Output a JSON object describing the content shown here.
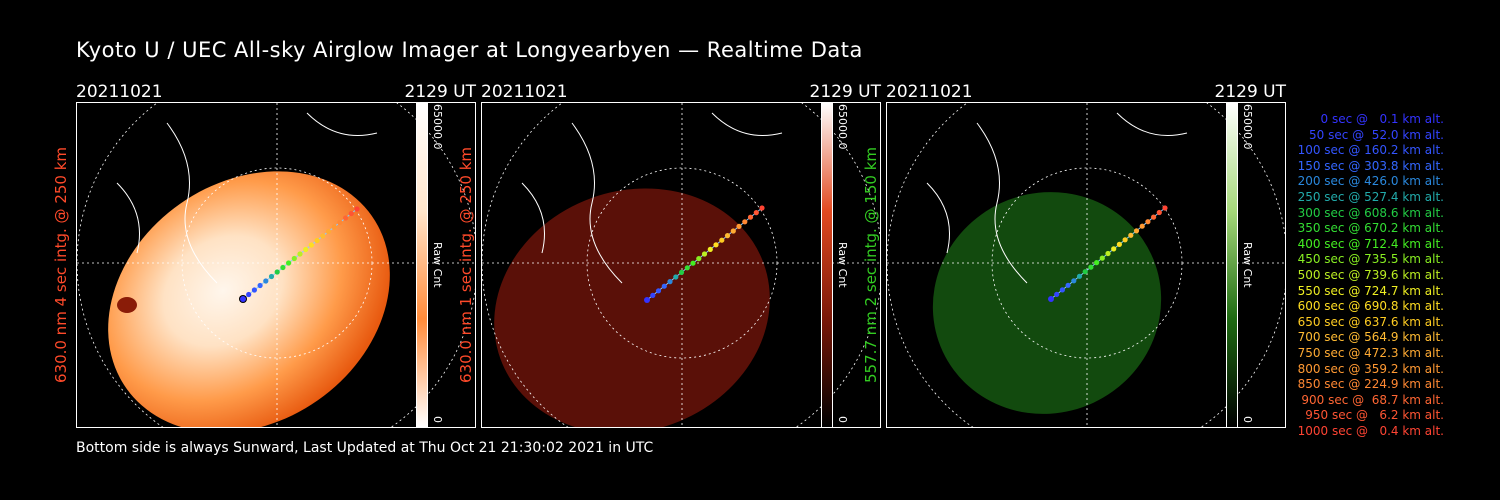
{
  "title": "Kyoto U / UEC All-sky Airglow Imager at Longyearbyen — Realtime Data",
  "panels": [
    {
      "date": "20211021",
      "time": "2129 UT",
      "ylabel": "630.0 nm 4 sec intg. @ 250 km",
      "ylabel_color": "#ff4a2a",
      "cbar_max": "65000.0",
      "cbar_min": "0",
      "cbar_unit": "Raw Cnt",
      "colormap": "orange"
    },
    {
      "date": "20211021",
      "time": "2129 UT",
      "ylabel": "630.0 nm 1 sec intg. @ 250 km",
      "ylabel_color": "#ff4a2a",
      "cbar_max": "65000.0",
      "cbar_min": "0",
      "cbar_unit": "Raw Cnt",
      "colormap": "red"
    },
    {
      "date": "20211021",
      "time": "2129 UT",
      "ylabel": "557.7 nm 2 sec intg. @ 150 km",
      "ylabel_color": "#33cc22",
      "cbar_max": "65000.0",
      "cbar_min": "0",
      "cbar_unit": "Raw Cnt",
      "colormap": "green"
    }
  ],
  "footer": "Bottom side is always Sunward, Last Updated at Thu Oct 21 21:30:02 2021 in UTC",
  "legend": [
    {
      "text": "0 sec @   0.1 km alt.",
      "color": "#3333ff"
    },
    {
      "text": "50 sec @  52.0 km alt.",
      "color": "#3344ff"
    },
    {
      "text": "100 sec @ 160.2 km alt.",
      "color": "#3355ff"
    },
    {
      "text": "150 sec @ 303.8 km alt.",
      "color": "#3366ff"
    },
    {
      "text": "200 sec @ 426.0 km alt.",
      "color": "#2a88dd"
    },
    {
      "text": "250 sec @ 527.4 km alt.",
      "color": "#22aaaa"
    },
    {
      "text": "300 sec @ 608.6 km alt.",
      "color": "#22cc44"
    },
    {
      "text": "350 sec @ 670.2 km alt.",
      "color": "#33dd33"
    },
    {
      "text": "400 sec @ 712.4 km alt.",
      "color": "#44ee22"
    },
    {
      "text": "450 sec @ 735.5 km alt.",
      "color": "#88ee22"
    },
    {
      "text": "500 sec @ 739.6 km alt.",
      "color": "#bbee22"
    },
    {
      "text": "550 sec @ 724.7 km alt.",
      "color": "#eeee22"
    },
    {
      "text": "600 sec @ 690.8 km alt.",
      "color": "#ffdd22"
    },
    {
      "text": "650 sec @ 637.6 km alt.",
      "color": "#ffcc22"
    },
    {
      "text": "700 sec @ 564.9 km alt.",
      "color": "#ffbb33"
    },
    {
      "text": "750 sec @ 472.3 km alt.",
      "color": "#ffaa33"
    },
    {
      "text": "800 sec @ 359.2 km alt.",
      "color": "#ff9933"
    },
    {
      "text": "850 sec @ 224.9 km alt.",
      "color": "#ff8833"
    },
    {
      "text": "900 sec @  68.7 km alt.",
      "color": "#ff6633"
    },
    {
      "text": "950 sec @   6.2 km alt.",
      "color": "#ff5533"
    },
    {
      "text": "1000 sec @   0.4 km alt.",
      "color": "#ff4433"
    }
  ]
}
